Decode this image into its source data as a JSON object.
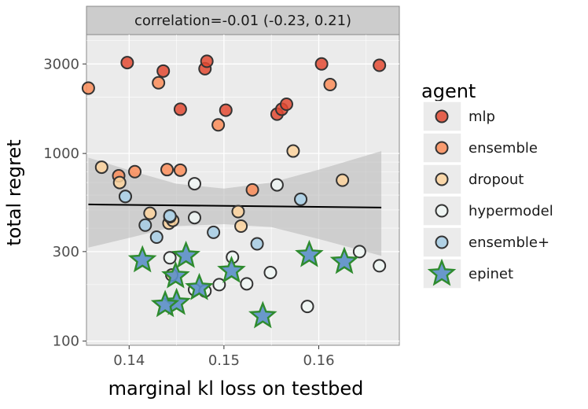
{
  "colors": {
    "mlp": "#e34a33",
    "ensemble": "#fc8d59",
    "dropout": "#fdd49e",
    "hypermodel": "#f0f7f4",
    "ensemble_plus": "#a6cce4",
    "epinet": "#5b8fc8",
    "epinet_stroke": "#2e8b2e",
    "panel_bg": "#ebebeb",
    "strip_bg": "#cccccc",
    "ribbon": "#bbbbbb"
  },
  "chart_data": {
    "type": "scatter",
    "strip_title": "correlation=-0.01 (-0.23, 0.21)",
    "xlabel": "marginal kl loss on testbed",
    "ylabel": "total regret",
    "xlim": [
      0.1355,
      0.1685
    ],
    "ylim_log": [
      95,
      4300
    ],
    "y_scale": "log10",
    "x_ticks": [
      {
        "value": 0.14,
        "label": "0.14"
      },
      {
        "value": 0.15,
        "label": "0.15"
      },
      {
        "value": 0.16,
        "label": "0.16"
      }
    ],
    "y_ticks": [
      {
        "value": 100,
        "label": "100"
      },
      {
        "value": 300,
        "label": "300"
      },
      {
        "value": 1000,
        "label": "1000"
      },
      {
        "value": 3000,
        "label": "3000"
      }
    ],
    "legend": {
      "title": "agent",
      "position": "right",
      "entries": [
        "mlp",
        "ensemble",
        "dropout",
        "hypermodel",
        "ensemble+",
        "epinet"
      ]
    },
    "trend_line": {
      "x": [
        0.1357,
        0.1666
      ],
      "y": [
        535,
        515
      ]
    },
    "confidence_band": {
      "x": [
        0.1357,
        0.1405,
        0.145,
        0.15,
        0.155,
        0.16,
        0.1666
      ],
      "upper": [
        950,
        800,
        690,
        650,
        700,
        820,
        1030
      ],
      "lower": [
        315,
        360,
        410,
        420,
        405,
        350,
        285
      ]
    },
    "series": [
      {
        "name": "mlp",
        "color_key": "mlp",
        "points": [
          {
            "x": 0.1398,
            "y": 3050
          },
          {
            "x": 0.1436,
            "y": 2750
          },
          {
            "x": 0.148,
            "y": 2830
          },
          {
            "x": 0.1482,
            "y": 3100
          },
          {
            "x": 0.1454,
            "y": 1720
          },
          {
            "x": 0.1502,
            "y": 1700
          },
          {
            "x": 0.1556,
            "y": 1620
          },
          {
            "x": 0.1561,
            "y": 1720
          },
          {
            "x": 0.1566,
            "y": 1830
          },
          {
            "x": 0.1603,
            "y": 3000
          },
          {
            "x": 0.1664,
            "y": 2950
          }
        ]
      },
      {
        "name": "ensemble",
        "color_key": "ensemble",
        "points": [
          {
            "x": 0.1357,
            "y": 2230
          },
          {
            "x": 0.1431,
            "y": 2380
          },
          {
            "x": 0.1612,
            "y": 2330
          },
          {
            "x": 0.1494,
            "y": 1420
          },
          {
            "x": 0.1389,
            "y": 760
          },
          {
            "x": 0.1406,
            "y": 800
          },
          {
            "x": 0.144,
            "y": 820
          },
          {
            "x": 0.1454,
            "y": 815
          },
          {
            "x": 0.153,
            "y": 640
          }
        ]
      },
      {
        "name": "dropout",
        "color_key": "dropout",
        "points": [
          {
            "x": 0.1573,
            "y": 1030
          },
          {
            "x": 0.1371,
            "y": 845
          },
          {
            "x": 0.139,
            "y": 700
          },
          {
            "x": 0.1422,
            "y": 480
          },
          {
            "x": 0.1442,
            "y": 425
          },
          {
            "x": 0.1446,
            "y": 440
          },
          {
            "x": 0.1515,
            "y": 490
          },
          {
            "x": 0.1518,
            "y": 410
          },
          {
            "x": 0.1625,
            "y": 720
          },
          {
            "x": 0.1445,
            "y": 225
          }
        ]
      },
      {
        "name": "hypermodel",
        "color_key": "hypermodel",
        "points": [
          {
            "x": 0.1664,
            "y": 252
          },
          {
            "x": 0.1643,
            "y": 300
          },
          {
            "x": 0.1509,
            "y": 280
          },
          {
            "x": 0.1443,
            "y": 278
          },
          {
            "x": 0.1549,
            "y": 232
          },
          {
            "x": 0.1495,
            "y": 200
          },
          {
            "x": 0.1524,
            "y": 202
          },
          {
            "x": 0.1469,
            "y": 188
          },
          {
            "x": 0.148,
            "y": 185
          },
          {
            "x": 0.1588,
            "y": 153
          },
          {
            "x": 0.1443,
            "y": 460
          },
          {
            "x": 0.1469,
            "y": 455
          },
          {
            "x": 0.1469,
            "y": 690
          },
          {
            "x": 0.1396,
            "y": 590
          },
          {
            "x": 0.1581,
            "y": 570
          },
          {
            "x": 0.1556,
            "y": 680
          }
        ]
      },
      {
        "name": "ensemble+",
        "color_key": "ensemble_plus",
        "points": [
          {
            "x": 0.1396,
            "y": 590
          },
          {
            "x": 0.1417,
            "y": 415
          },
          {
            "x": 0.1429,
            "y": 358
          },
          {
            "x": 0.1443,
            "y": 465
          },
          {
            "x": 0.1489,
            "y": 380
          },
          {
            "x": 0.1535,
            "y": 330
          },
          {
            "x": 0.1581,
            "y": 570
          }
        ]
      },
      {
        "name": "epinet",
        "color_key": "epinet",
        "points": [
          {
            "x": 0.1414,
            "y": 270
          },
          {
            "x": 0.146,
            "y": 285
          },
          {
            "x": 0.159,
            "y": 288
          },
          {
            "x": 0.1627,
            "y": 265
          },
          {
            "x": 0.1508,
            "y": 237
          },
          {
            "x": 0.1449,
            "y": 222
          },
          {
            "x": 0.1474,
            "y": 192
          },
          {
            "x": 0.145,
            "y": 160
          },
          {
            "x": 0.1438,
            "y": 156
          },
          {
            "x": 0.1541,
            "y": 136
          }
        ]
      }
    ]
  }
}
